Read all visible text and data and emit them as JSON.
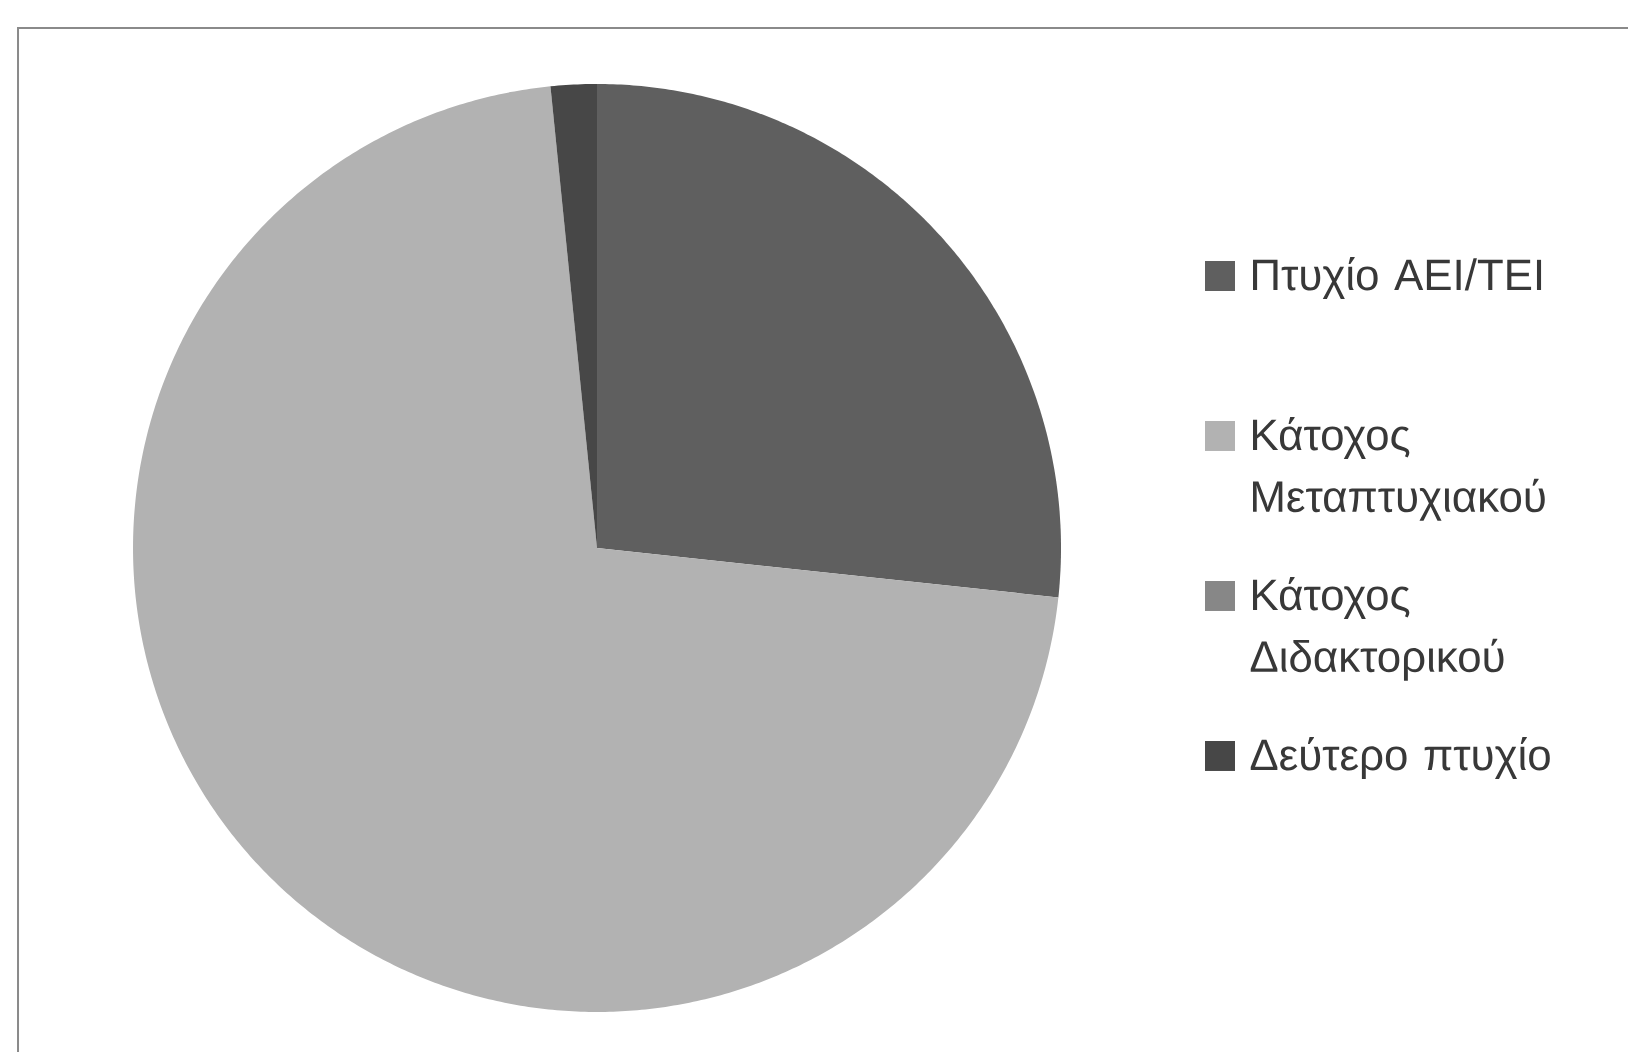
{
  "chart_data": {
    "type": "pie",
    "categories": [
      "Πτυχίο ΑΕΙ/ΤΕΙ",
      "Κάτοχος Μεταπτυχιακού",
      "Κάτοχος Διδακτορικού",
      "Δεύτερο πτυχίο"
    ],
    "values": [
      26.7,
      71.7,
      0,
      1.6
    ],
    "colors": [
      "#5f5f5f",
      "#b2b2b2",
      "#878787",
      "#474747"
    ],
    "legend": "right"
  }
}
